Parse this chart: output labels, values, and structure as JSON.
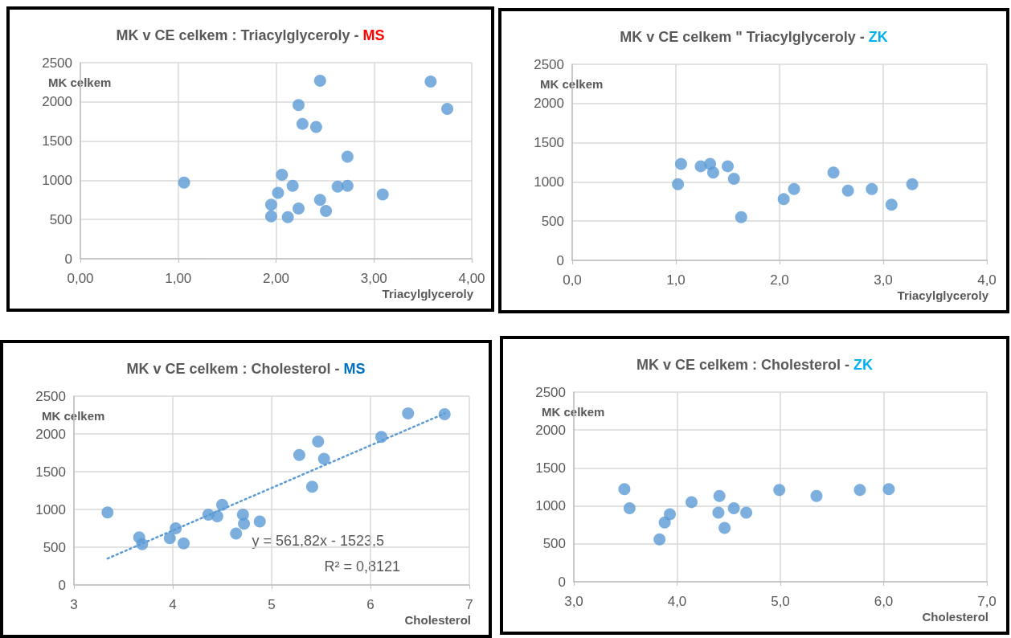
{
  "chart_data": [
    {
      "type": "scatter",
      "title": "MK v CE celkem : Triacylglyceroly - MS",
      "xlabel": "Triacylglyceroly",
      "ylabel": "MK celkem",
      "marker": "circle",
      "grid": true,
      "series": [
        {
          "color": "#5b9bd5",
          "x": [
            1.06,
            2.45,
            3.58,
            3.75,
            2.23,
            2.27,
            2.41,
            2.73,
            2.06,
            2.17,
            2.63,
            2.73,
            2.02,
            3.09,
            1.95,
            2.45,
            2.23,
            2.51,
            1.95,
            2.12
          ],
          "values": [
            970,
            2270,
            2260,
            1910,
            1960,
            1720,
            1680,
            1300,
            1070,
            930,
            920,
            930,
            840,
            820,
            690,
            750,
            640,
            610,
            540,
            530
          ]
        }
      ],
      "xlim": [
        0,
        4
      ],
      "xticks": [
        {
          "value": 0,
          "label": "0,00"
        },
        {
          "value": 1,
          "label": "1,00"
        },
        {
          "value": 2,
          "label": "2,00"
        },
        {
          "value": 3,
          "label": "3,00"
        },
        {
          "value": 4,
          "label": "4,00"
        }
      ],
      "ylim": [
        0,
        2500
      ],
      "yticks": [
        0,
        500,
        1000,
        1500,
        2000,
        2500
      ]
    },
    {
      "type": "scatter",
      "title": "MK v CE celkem \" Triacylglyceroly - ZK",
      "xlabel": "Triacylglyceroly",
      "ylabel": "MK celkem",
      "marker": "circle",
      "grid": true,
      "series": [
        {
          "color": "#5b9bd5",
          "x": [
            1.05,
            1.02,
            1.24,
            1.33,
            1.36,
            1.5,
            1.56,
            1.63,
            2.04,
            2.14,
            2.52,
            2.66,
            2.89,
            3.08,
            3.28
          ],
          "values": [
            1230,
            970,
            1200,
            1230,
            1120,
            1200,
            1040,
            550,
            780,
            910,
            1120,
            890,
            910,
            710,
            970
          ]
        }
      ],
      "xlim": [
        0,
        4
      ],
      "xticks": [
        {
          "value": 0,
          "label": "0,0"
        },
        {
          "value": 1,
          "label": "1,0"
        },
        {
          "value": 2,
          "label": "2,0"
        },
        {
          "value": 3,
          "label": "3,0"
        },
        {
          "value": 4,
          "label": "4,0"
        }
      ],
      "ylim": [
        0,
        2500
      ],
      "yticks": [
        0,
        500,
        1000,
        1500,
        2000,
        2500
      ]
    },
    {
      "type": "scatter",
      "title": "MK v CE celkem : Cholesterol - MS",
      "xlabel": "Cholesterol",
      "ylabel": "MK celkem",
      "marker": "circle",
      "grid": true,
      "series": [
        {
          "color": "#5b9bd5",
          "x": [
            3.34,
            6.38,
            6.75,
            6.11,
            5.47,
            5.28,
            5.53,
            5.41,
            4.5,
            4.36,
            4.45,
            4.71,
            4.72,
            4.88,
            4.64,
            4.03,
            3.66,
            3.69,
            3.97,
            4.11
          ],
          "values": [
            960,
            2270,
            2260,
            1960,
            1900,
            1720,
            1670,
            1300,
            1060,
            930,
            910,
            930,
            810,
            840,
            680,
            750,
            630,
            540,
            620,
            550
          ]
        },
        {
          "type": "line",
          "color": "#5b9bd5",
          "line_style": "dotted",
          "marker": "none",
          "x": [
            3.34,
            6.75
          ],
          "values": [
            350,
            2270
          ]
        }
      ],
      "annotations": [
        "y = 561,82x - 1523,5",
        "R² = 0,8121"
      ],
      "xlim": [
        3,
        7
      ],
      "xticks": [
        3,
        4,
        5,
        6,
        7
      ],
      "ylim": [
        0,
        2500
      ],
      "yticks": [
        0,
        500,
        1000,
        1500,
        2000,
        2500
      ]
    },
    {
      "type": "scatter",
      "title": "MK v CE celkem : Cholesterol - ZK",
      "xlabel": "Cholesterol",
      "ylabel": "MK celkem",
      "marker": "circle",
      "grid": true,
      "series": [
        {
          "color": "#5b9bd5",
          "x": [
            3.49,
            3.54,
            3.83,
            3.88,
            3.93,
            4.14,
            4.41,
            4.4,
            4.55,
            4.46,
            4.67,
            4.99,
            5.35,
            5.77,
            6.05
          ],
          "values": [
            1220,
            970,
            560,
            780,
            890,
            1050,
            1130,
            910,
            970,
            710,
            910,
            1210,
            1130,
            1210,
            1220
          ]
        }
      ],
      "xlim": [
        3,
        7
      ],
      "xticks": [
        {
          "value": 3,
          "label": "3,0"
        },
        {
          "value": 4,
          "label": "4,0"
        },
        {
          "value": 5,
          "label": "5,0"
        },
        {
          "value": 6,
          "label": "6,0"
        },
        {
          "value": 7,
          "label": "7,0"
        }
      ],
      "ylim": [
        0,
        2500
      ],
      "yticks": [
        0,
        500,
        1000,
        1500,
        2000,
        2500
      ]
    }
  ]
}
